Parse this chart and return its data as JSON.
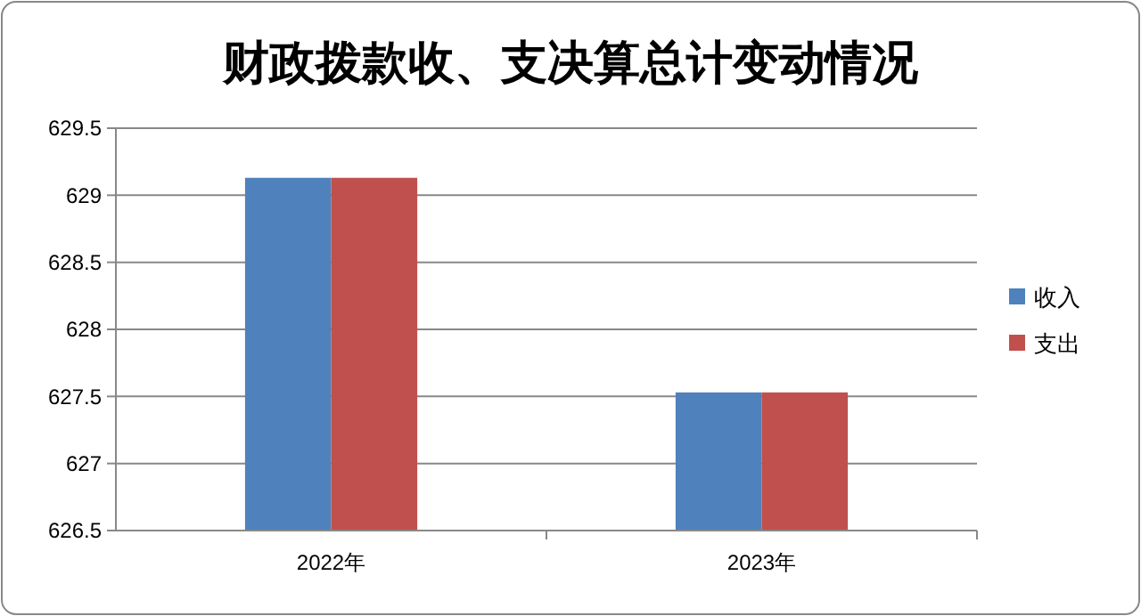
{
  "chart_data": {
    "type": "bar",
    "title": "财政拨款收、支决算总计变动情况",
    "categories": [
      "2022年",
      "2023年"
    ],
    "series": [
      {
        "name": "收入",
        "color": "#4f81bd",
        "values": [
          629.13,
          627.53
        ]
      },
      {
        "name": "支出",
        "color": "#c0504d",
        "values": [
          629.13,
          627.53
        ]
      }
    ],
    "ylim": [
      626.5,
      629.5
    ],
    "yticks": [
      626.5,
      627,
      627.5,
      628,
      628.5,
      629,
      629.5
    ],
    "grid": "y",
    "legend": "right"
  }
}
